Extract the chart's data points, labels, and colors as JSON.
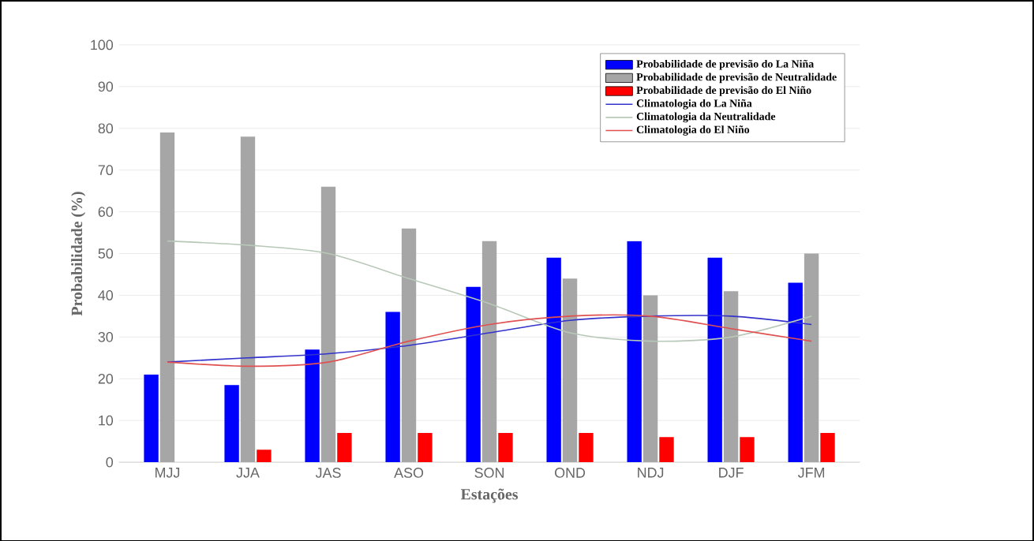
{
  "chart_data": {
    "type": "bar",
    "xlabel": "Estações",
    "ylabel": "Probabilidade (%)",
    "categories": [
      "MJJ",
      "JJA",
      "JAS",
      "ASO",
      "SON",
      "OND",
      "NDJ",
      "DJF",
      "JFM"
    ],
    "series": [
      {
        "name": "Probabilidade de previsão do La Niña",
        "color": "#0000ff",
        "values": [
          21,
          18.5,
          27,
          36,
          42,
          49,
          53,
          49,
          43
        ]
      },
      {
        "name": "Probabilidade de previsão de Neutralidade",
        "color": "#a6a6a6",
        "values": [
          79,
          78,
          66,
          56,
          53,
          44,
          40,
          41,
          50
        ]
      },
      {
        "name": "Probabilidade de previsão do El Niño",
        "color": "#ff0000",
        "values": [
          null,
          3,
          7,
          7,
          7,
          7,
          6,
          6,
          7
        ]
      },
      {
        "name": "Climatologia do La Niña",
        "type": "line",
        "color": "#3333cc",
        "values": [
          24,
          25,
          26,
          28,
          31,
          34,
          35,
          35,
          33
        ]
      },
      {
        "name": "Climatologia da Neutralidade",
        "type": "line",
        "color": "#b8c8b8",
        "values": [
          53,
          52,
          50,
          44,
          38,
          31,
          29,
          30,
          35
        ]
      },
      {
        "name": "Climatologia do El Niño",
        "type": "line",
        "color": "#e05050",
        "values": [
          24,
          23,
          24,
          29,
          33,
          35,
          35,
          32,
          29
        ]
      }
    ],
    "ylim": [
      0,
      100
    ],
    "yticks": [
      0,
      10,
      20,
      30,
      40,
      50,
      60,
      70,
      80,
      90,
      100
    ],
    "grid": "y",
    "legend": "top right"
  }
}
